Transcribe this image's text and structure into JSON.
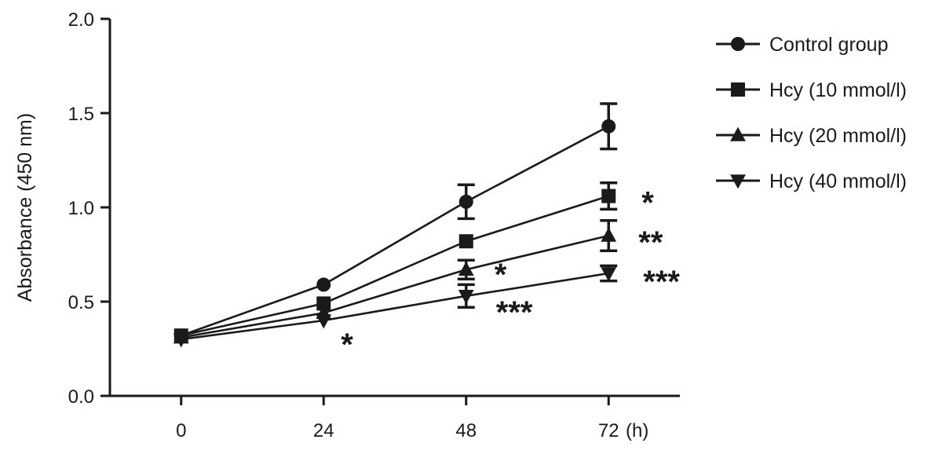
{
  "chart_data": {
    "type": "line",
    "title": "",
    "xlabel": "",
    "x_unit_label": "(h)",
    "ylabel": "Absorbance (450 nm)",
    "x": [
      0,
      24,
      48,
      72
    ],
    "x_tick_labels": [
      "0",
      "24",
      "48",
      "72"
    ],
    "xlim": [
      -12,
      84
    ],
    "ylim": [
      0,
      2.0
    ],
    "y_ticks": [
      0.0,
      0.5,
      1.0,
      1.5,
      2.0
    ],
    "y_tick_labels": [
      "0.0",
      "0.5",
      "1.0",
      "1.5",
      "2.0"
    ],
    "grid": false,
    "legend_position": "right",
    "series": [
      {
        "name": "Control group",
        "marker": "circle",
        "values": [
          0.32,
          0.59,
          1.03,
          1.43
        ],
        "errors": [
          0.02,
          0.02,
          0.09,
          0.12
        ],
        "significance": [
          "",
          "",
          "",
          ""
        ]
      },
      {
        "name": "Hcy (10 mmol/l)",
        "marker": "square",
        "values": [
          0.32,
          0.49,
          0.82,
          1.06
        ],
        "errors": [
          0.02,
          0.02,
          0.02,
          0.07
        ],
        "significance": [
          "",
          "",
          "",
          "*"
        ]
      },
      {
        "name": "Hcy (20 mmol/l)",
        "marker": "triangle-up",
        "values": [
          0.31,
          0.44,
          0.67,
          0.85
        ],
        "errors": [
          0.02,
          0.02,
          0.05,
          0.08
        ],
        "significance": [
          "",
          "",
          "*",
          "**"
        ]
      },
      {
        "name": "Hcy (40 mmol/l)",
        "marker": "triangle-down",
        "values": [
          0.3,
          0.4,
          0.53,
          0.65
        ],
        "errors": [
          0.02,
          0.02,
          0.06,
          0.04
        ],
        "significance": [
          "",
          "*",
          "***",
          "***"
        ]
      }
    ]
  }
}
